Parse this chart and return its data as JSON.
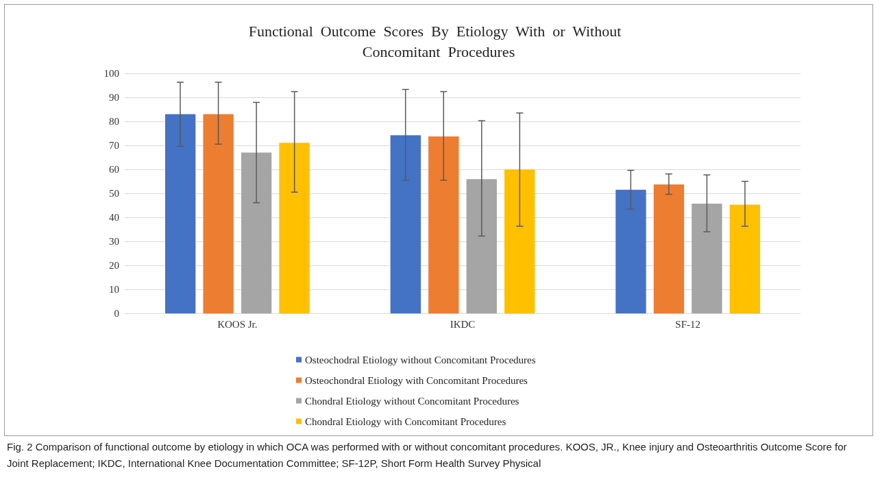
{
  "chart_data": {
    "type": "bar",
    "title": "Functional  Outcome  Scores  By  Etiology  With  or  Without  Concomitant  Procedures",
    "categories": [
      "KOOS Jr.",
      "IKDC",
      "SF-12"
    ],
    "series": [
      {
        "name": "Osteochodral Etiology without Concomitant Procedures",
        "color": "#4472c4",
        "values": [
          83,
          74.2,
          51.5
        ],
        "errors": [
          [
            69.6,
            96.3
          ],
          [
            55.5,
            93.3
          ],
          [
            43.4,
            59.6
          ]
        ]
      },
      {
        "name": "Osteochondral Etiology with Concomitant Procedures",
        "color": "#ed7d31",
        "values": [
          83,
          73.7,
          53.7
        ],
        "errors": [
          [
            70.5,
            96.3
          ],
          [
            55.5,
            92.4
          ],
          [
            49.6,
            58.1
          ]
        ]
      },
      {
        "name": "Chondral Etiology without Concomitant Procedures",
        "color": "#a5a5a5",
        "values": [
          67,
          55.9,
          45.7
        ],
        "errors": [
          [
            46.1,
            87.9
          ],
          [
            32.2,
            80.3
          ],
          [
            34,
            57.7
          ]
        ]
      },
      {
        "name": "Chondral Etiology with Concomitant Procedures",
        "color": "#ffc000",
        "values": [
          71.1,
          60,
          45.3
        ],
        "errors": [
          [
            50.5,
            92.4
          ],
          [
            36.3,
            83.5
          ],
          [
            36.3,
            55
          ]
        ]
      }
    ],
    "ylim": [
      0,
      100
    ],
    "yticks": [
      0,
      10,
      20,
      30,
      40,
      50,
      60,
      70,
      80,
      90,
      100
    ],
    "grid": "y",
    "legend": "bottom",
    "annotations": [
      "Fig. 2  Comparison of functional outcome by etiology in which OCA was performed with or without concomitant procedures. KOOS, JR., Knee injury and Osteoarthritis Outcome Score for Joint Replacement; IKDC, International Knee Documentation Committee; SF-12P, Short Form Health Survey Physical"
    ]
  }
}
